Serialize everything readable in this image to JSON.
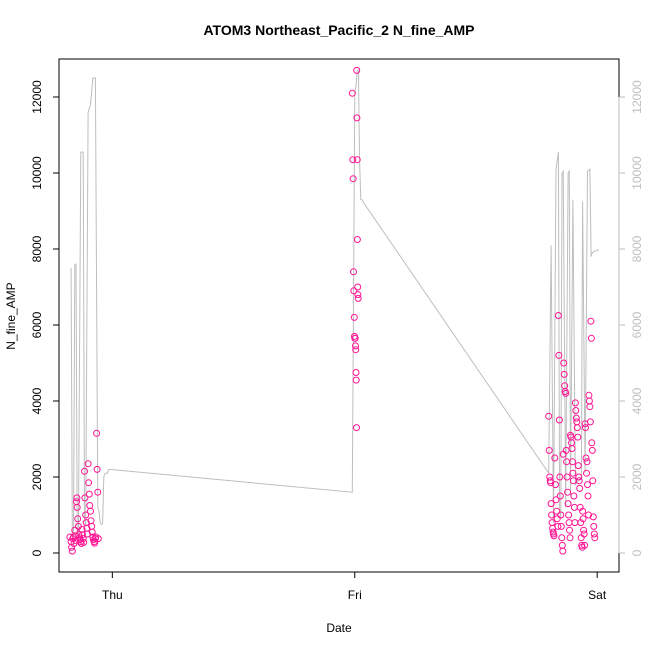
{
  "chart_data": {
    "type": "scatter",
    "title": "ATOM3 Northeast_Pacific_2 N_fine_AMP",
    "xlabel": "Date",
    "ylabel": "N_fine_AMP",
    "x_ticks": [
      "Thu",
      "Fri",
      "Sat"
    ],
    "x_tick_days": [
      0,
      1,
      2
    ],
    "xlim": [
      -0.22,
      2.09
    ],
    "ylim": [
      -500,
      13000
    ],
    "y_ticks": [
      0,
      2000,
      4000,
      6000,
      8000,
      10000,
      12000
    ],
    "y_ticks_right": [
      0,
      2000,
      4000,
      6000,
      8000,
      10000,
      12000
    ],
    "grid": false,
    "legend": "none",
    "colors": {
      "points": "#ff1493",
      "line": "#bebebe",
      "axis": "#000000",
      "right_axis": "#bebebe"
    },
    "line_series": {
      "name": "",
      "x": [
        -0.17,
        -0.165,
        -0.16,
        -0.155,
        -0.15,
        -0.145,
        -0.14,
        -0.13,
        -0.12,
        -0.115,
        -0.11,
        -0.1,
        -0.09,
        -0.08,
        -0.07,
        -0.06,
        -0.055,
        -0.05,
        -0.045,
        -0.04,
        -0.035,
        -0.03,
        -0.02,
        -0.015,
        -0.01,
        0.99,
        1.0,
        1.005,
        1.01,
        1.015,
        1.02,
        1.025,
        1.03,
        1.033,
        1.8,
        1.81,
        1.82,
        1.83,
        1.84,
        1.845,
        1.85,
        1.855,
        1.86,
        1.87,
        1.88,
        1.885,
        1.89,
        1.9,
        1.91,
        1.92,
        1.93,
        1.935,
        1.94,
        1.95,
        1.96,
        1.97,
        1.975,
        1.98,
        1.99,
        2.0,
        2.005
      ],
      "y": [
        7500,
        500,
        400,
        7600,
        7600,
        500,
        400,
        10550,
        10550,
        900,
        700,
        11600,
        11800,
        12500,
        12500,
        1200,
        1100,
        800,
        750,
        780,
        2000,
        2100,
        2100,
        2200,
        2200,
        1600,
        12100,
        12300,
        12700,
        12700,
        10300,
        9300,
        9300,
        9250,
        2100,
        8100,
        800,
        10100,
        10550,
        1100,
        900,
        10000,
        10050,
        1200,
        10000,
        10050,
        1500,
        9300,
        1800,
        1900,
        1950,
        2000,
        9250,
        2100,
        10050,
        10100,
        7800,
        7900,
        7950,
        7950,
        8000
      ]
    },
    "series": [
      {
        "name": "",
        "points": [
          [
            -0.175,
            420
          ],
          [
            -0.17,
            300
          ],
          [
            -0.168,
            150
          ],
          [
            -0.165,
            50
          ],
          [
            -0.163,
            380
          ],
          [
            -0.16,
            420
          ],
          [
            -0.158,
            250
          ],
          [
            -0.155,
            600
          ],
          [
            -0.152,
            450
          ],
          [
            -0.15,
            320
          ],
          [
            -0.148,
            1350
          ],
          [
            -0.146,
            1450
          ],
          [
            -0.145,
            1200
          ],
          [
            -0.143,
            900
          ],
          [
            -0.14,
            700
          ],
          [
            -0.138,
            480
          ],
          [
            -0.135,
            400
          ],
          [
            -0.133,
            350
          ],
          [
            -0.13,
            300
          ],
          [
            -0.128,
            250
          ],
          [
            -0.125,
            620
          ],
          [
            -0.123,
            480
          ],
          [
            -0.12,
            380
          ],
          [
            -0.118,
            280
          ],
          [
            -0.115,
            2150
          ],
          [
            -0.113,
            1450
          ],
          [
            -0.11,
            1000
          ],
          [
            -0.108,
            800
          ],
          [
            -0.105,
            650
          ],
          [
            -0.103,
            500
          ],
          [
            -0.1,
            2350
          ],
          [
            -0.098,
            1850
          ],
          [
            -0.095,
            1550
          ],
          [
            -0.093,
            1250
          ],
          [
            -0.09,
            1100
          ],
          [
            -0.088,
            850
          ],
          [
            -0.085,
            700
          ],
          [
            -0.083,
            550
          ],
          [
            -0.08,
            420
          ],
          [
            -0.078,
            350
          ],
          [
            -0.075,
            300
          ],
          [
            -0.073,
            260
          ],
          [
            -0.07,
            380
          ],
          [
            -0.068,
            420
          ],
          [
            -0.065,
            3150
          ],
          [
            -0.063,
            2200
          ],
          [
            -0.06,
            1600
          ],
          [
            -0.058,
            380
          ],
          [
            0.99,
            12100
          ],
          [
            0.992,
            10350
          ],
          [
            0.993,
            9850
          ],
          [
            0.995,
            7400
          ],
          [
            0.996,
            6900
          ],
          [
            0.998,
            6200
          ],
          [
            0.999,
            5700
          ],
          [
            1.0,
            5650
          ],
          [
            1.002,
            5650
          ],
          [
            1.003,
            5450
          ],
          [
            1.004,
            5350
          ],
          [
            1.005,
            4750
          ],
          [
            1.006,
            4550
          ],
          [
            1.007,
            3300
          ],
          [
            1.008,
            12700
          ],
          [
            1.009,
            11450
          ],
          [
            1.01,
            10350
          ],
          [
            1.011,
            8250
          ],
          [
            1.012,
            7000
          ],
          [
            1.013,
            6800
          ],
          [
            1.014,
            6700
          ],
          [
            1.8,
            3600
          ],
          [
            1.802,
            2700
          ],
          [
            1.804,
            2000
          ],
          [
            1.806,
            1900
          ],
          [
            1.808,
            1850
          ],
          [
            1.81,
            1300
          ],
          [
            1.812,
            1000
          ],
          [
            1.814,
            800
          ],
          [
            1.816,
            650
          ],
          [
            1.818,
            550
          ],
          [
            1.82,
            500
          ],
          [
            1.822,
            450
          ],
          [
            1.825,
            2500
          ],
          [
            1.828,
            1800
          ],
          [
            1.83,
            1400
          ],
          [
            1.833,
            1100
          ],
          [
            1.835,
            900
          ],
          [
            1.838,
            700
          ],
          [
            1.84,
            6250
          ],
          [
            1.842,
            5200
          ],
          [
            1.844,
            3500
          ],
          [
            1.846,
            2000
          ],
          [
            1.848,
            1500
          ],
          [
            1.85,
            1000
          ],
          [
            1.852,
            700
          ],
          [
            1.854,
            400
          ],
          [
            1.856,
            200
          ],
          [
            1.858,
            50
          ],
          [
            1.86,
            2600
          ],
          [
            1.862,
            5000
          ],
          [
            1.864,
            4700
          ],
          [
            1.866,
            4400
          ],
          [
            1.868,
            4250
          ],
          [
            1.87,
            4200
          ],
          [
            1.872,
            2700
          ],
          [
            1.874,
            2400
          ],
          [
            1.876,
            2000
          ],
          [
            1.878,
            1600
          ],
          [
            1.88,
            1300
          ],
          [
            1.882,
            1000
          ],
          [
            1.884,
            800
          ],
          [
            1.886,
            600
          ],
          [
            1.888,
            400
          ],
          [
            1.89,
            3100
          ],
          [
            1.892,
            3050
          ],
          [
            1.894,
            2900
          ],
          [
            1.896,
            2750
          ],
          [
            1.898,
            2400
          ],
          [
            1.9,
            2100
          ],
          [
            1.902,
            1900
          ],
          [
            1.904,
            1500
          ],
          [
            1.906,
            1200
          ],
          [
            1.908,
            800
          ],
          [
            1.91,
            3950
          ],
          [
            1.912,
            3750
          ],
          [
            1.914,
            3550
          ],
          [
            1.916,
            3450
          ],
          [
            1.918,
            3300
          ],
          [
            1.92,
            3050
          ],
          [
            1.922,
            2300
          ],
          [
            1.924,
            2000
          ],
          [
            1.926,
            1900
          ],
          [
            1.928,
            1700
          ],
          [
            1.93,
            1200
          ],
          [
            1.932,
            800
          ],
          [
            1.934,
            400
          ],
          [
            1.936,
            200
          ],
          [
            1.938,
            150
          ],
          [
            1.94,
            1100
          ],
          [
            1.942,
            900
          ],
          [
            1.944,
            600
          ],
          [
            1.946,
            500
          ],
          [
            1.948,
            200
          ],
          [
            1.95,
            3400
          ],
          [
            1.952,
            3300
          ],
          [
            1.954,
            2500
          ],
          [
            1.956,
            2100
          ],
          [
            1.958,
            2400
          ],
          [
            1.96,
            1800
          ],
          [
            1.962,
            1500
          ],
          [
            1.964,
            1000
          ],
          [
            1.966,
            4150
          ],
          [
            1.968,
            4000
          ],
          [
            1.97,
            3850
          ],
          [
            1.972,
            3450
          ],
          [
            1.974,
            6100
          ],
          [
            1.976,
            5650
          ],
          [
            1.978,
            2900
          ],
          [
            1.98,
            2700
          ],
          [
            1.982,
            1900
          ],
          [
            1.984,
            950
          ],
          [
            1.986,
            700
          ],
          [
            1.988,
            500
          ],
          [
            1.99,
            400
          ]
        ]
      }
    ]
  }
}
